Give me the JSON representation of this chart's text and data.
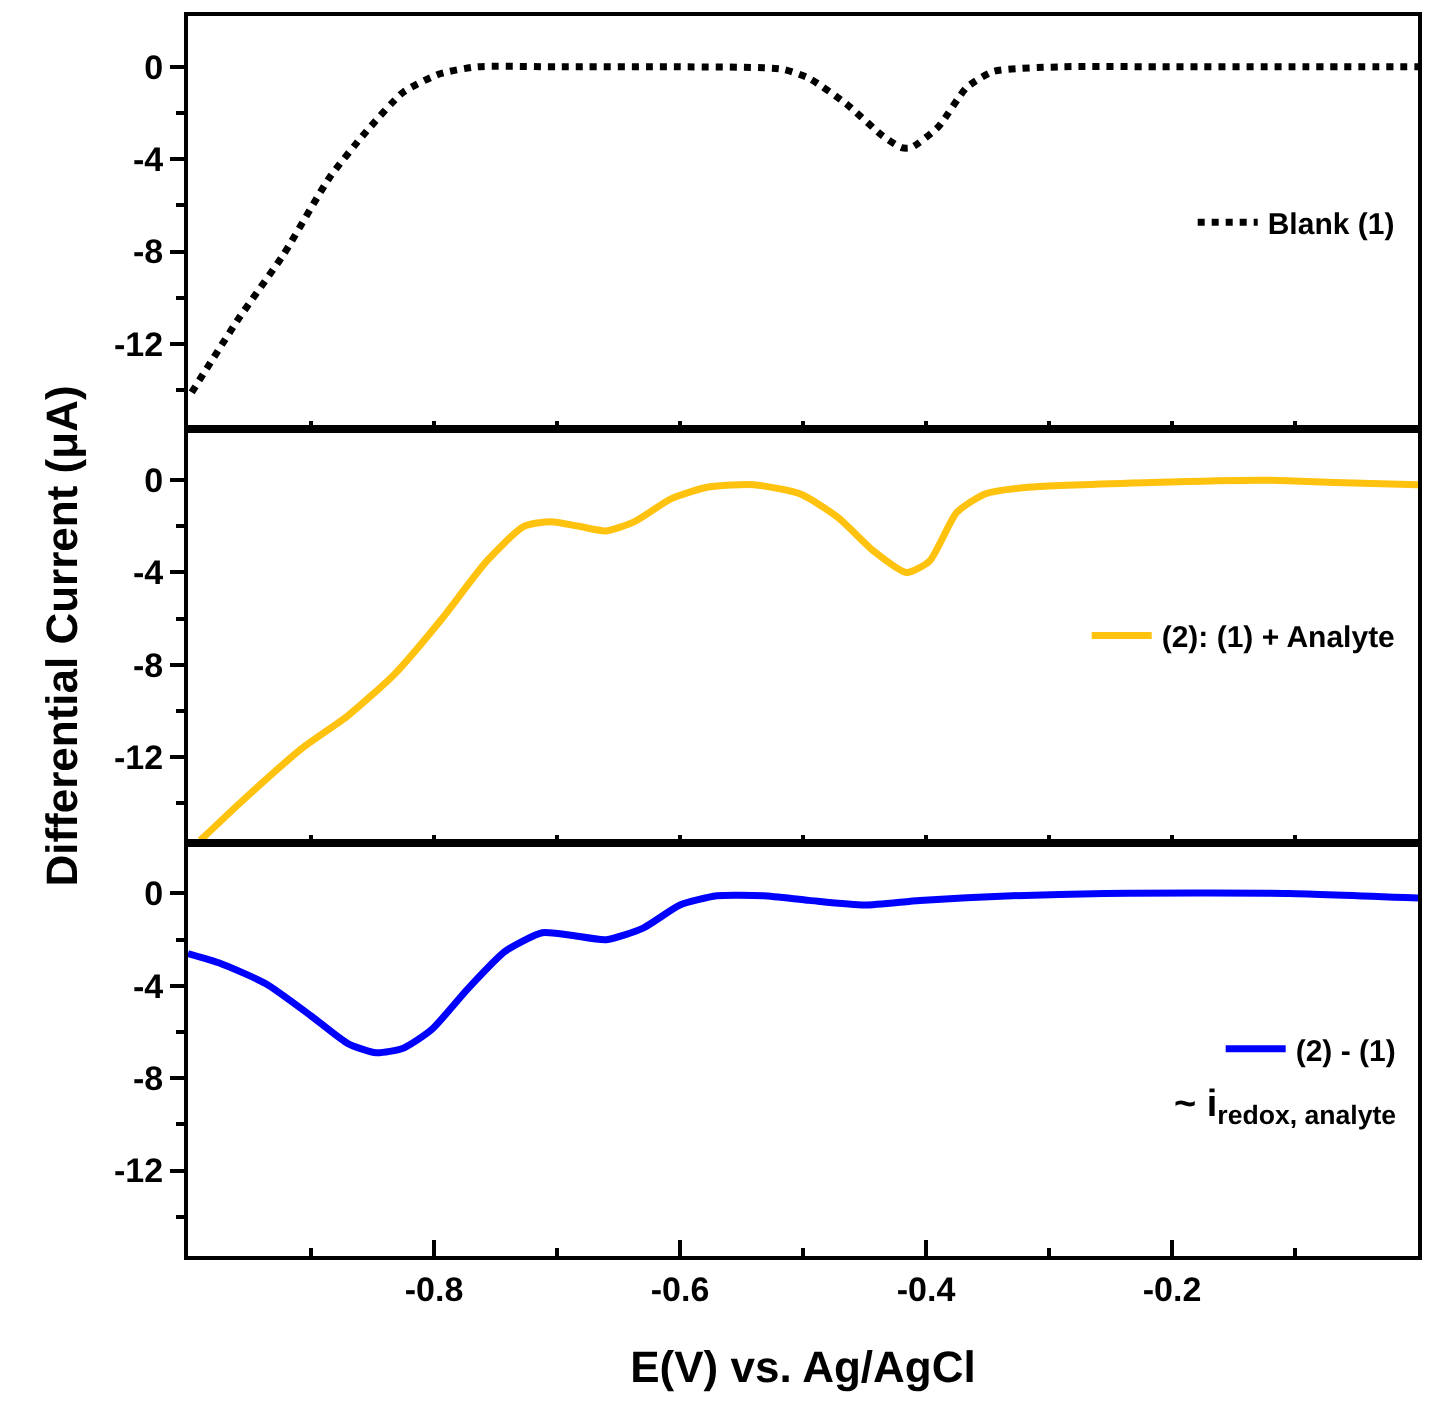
{
  "chart_data": [
    {
      "type": "line",
      "xlim": [
        -1.0,
        0.0
      ],
      "ylim": [
        -15.7,
        2.2
      ],
      "tick_labels": "y",
      "legend": "right",
      "line_style": "dotted",
      "xticks": [
        {
          "value": -0.9,
          "label": null
        },
        {
          "value": -0.8,
          "label": null
        },
        {
          "value": -0.7,
          "label": null
        },
        {
          "value": -0.6,
          "label": null
        },
        {
          "value": -0.5,
          "label": null
        },
        {
          "value": -0.4,
          "label": null
        },
        {
          "value": -0.3,
          "label": null
        },
        {
          "value": -0.2,
          "label": null
        },
        {
          "value": -0.1,
          "label": null
        }
      ],
      "yticks": [
        0,
        {
          "value": -2,
          "label": null
        },
        -4,
        {
          "value": -6,
          "label": null
        },
        -8,
        {
          "value": -10,
          "label": null
        },
        -12,
        {
          "value": -14,
          "label": null
        }
      ],
      "series": [
        {
          "name": "Blank (1)",
          "color": "#000000",
          "x": [
            -0.997,
            -0.96,
            -0.922,
            -0.885,
            -0.855,
            -0.825,
            -0.795,
            -0.765,
            -0.7,
            -0.6,
            -0.517,
            -0.495,
            -0.465,
            -0.435,
            -0.42,
            -0.412,
            -0.39,
            -0.367,
            -0.345,
            -0.29,
            -0.2,
            -0.1,
            0.0
          ],
          "values": [
            -14.1,
            -11.0,
            -8.1,
            -4.8,
            -2.8,
            -1.1,
            -0.3,
            0,
            0,
            0,
            -0.1,
            -0.5,
            -1.6,
            -3.0,
            -3.5,
            -3.5,
            -2.6,
            -0.9,
            -0.2,
            0,
            0,
            0,
            0
          ]
        }
      ]
    },
    {
      "type": "line",
      "xlim": [
        -1.0,
        0.0
      ],
      "ylim": [
        -15.7,
        2.2
      ],
      "tick_labels": "y",
      "legend": "right",
      "line_style": "solid",
      "ylabel": "Differential Current (μA)",
      "xticks": [
        {
          "value": -0.9,
          "label": null
        },
        {
          "value": -0.8,
          "label": null
        },
        {
          "value": -0.7,
          "label": null
        },
        {
          "value": -0.6,
          "label": null
        },
        {
          "value": -0.5,
          "label": null
        },
        {
          "value": -0.4,
          "label": null
        },
        {
          "value": -0.3,
          "label": null
        },
        {
          "value": -0.2,
          "label": null
        },
        {
          "value": -0.1,
          "label": null
        }
      ],
      "yticks": [
        0,
        {
          "value": -2,
          "label": null
        },
        -4,
        {
          "value": -6,
          "label": null
        },
        -8,
        {
          "value": -10,
          "label": null
        },
        -12,
        {
          "value": -14,
          "label": null
        }
      ],
      "series": [
        {
          "name": "(2): (1) + Analyte",
          "color": "#ffc20e",
          "x": [
            -0.99,
            -0.952,
            -0.907,
            -0.87,
            -0.832,
            -0.795,
            -0.757,
            -0.727,
            -0.705,
            -0.682,
            -0.66,
            -0.637,
            -0.607,
            -0.577,
            -0.54,
            -0.502,
            -0.472,
            -0.442,
            -0.416,
            -0.397,
            -0.375,
            -0.352,
            -0.315,
            -0.217,
            -0.127,
            -0.067,
            0.0
          ],
          "values": [
            -15.6,
            -13.7,
            -11.6,
            -10.2,
            -8.4,
            -6.1,
            -3.5,
            -2.0,
            -1.8,
            -2.0,
            -2.2,
            -1.8,
            -0.8,
            -0.3,
            -0.2,
            -0.6,
            -1.6,
            -3.1,
            -4.0,
            -3.5,
            -1.4,
            -0.6,
            -0.3,
            -0.1,
            0,
            -0.1,
            -0.2
          ]
        }
      ]
    },
    {
      "type": "line",
      "xlim": [
        -1.0,
        0.0
      ],
      "ylim": [
        -15.7,
        2.2
      ],
      "legend": "right",
      "line_style": "solid",
      "xlabel": "E(V) vs. Ag/AgCl",
      "annotations": [
        "~ i$_{redox, analyte}$"
      ],
      "xticks": [
        {
          "value": -0.9,
          "label": null
        },
        -0.8,
        {
          "value": -0.7,
          "label": null
        },
        -0.6,
        {
          "value": -0.5,
          "label": null
        },
        -0.4,
        {
          "value": -0.3,
          "label": null
        },
        -0.2,
        {
          "value": -0.1,
          "label": null
        }
      ],
      "yticks": [
        0,
        {
          "value": -2,
          "label": null
        },
        -4,
        {
          "value": -6,
          "label": null
        },
        -8,
        {
          "value": -10,
          "label": null
        },
        -12,
        {
          "value": -14,
          "label": null
        }
      ],
      "series": [
        {
          "name": "(2) - (1)",
          "color": "#0000ff",
          "x": [
            -1.0,
            -0.975,
            -0.937,
            -0.9,
            -0.87,
            -0.847,
            -0.825,
            -0.802,
            -0.772,
            -0.742,
            -0.712,
            -0.69,
            -0.66,
            -0.63,
            -0.6,
            -0.57,
            -0.532,
            -0.495,
            -0.45,
            -0.405,
            -0.33,
            -0.255,
            -0.105,
            0.0
          ],
          "values": [
            -2.6,
            -3.0,
            -3.9,
            -5.3,
            -6.5,
            -6.9,
            -6.7,
            -5.9,
            -4.1,
            -2.5,
            -1.7,
            -1.8,
            -2.0,
            -1.5,
            -0.5,
            -0.1,
            -0.1,
            -0.3,
            -0.5,
            -0.3,
            -0.1,
            0,
            0,
            -0.2
          ]
        }
      ]
    }
  ]
}
